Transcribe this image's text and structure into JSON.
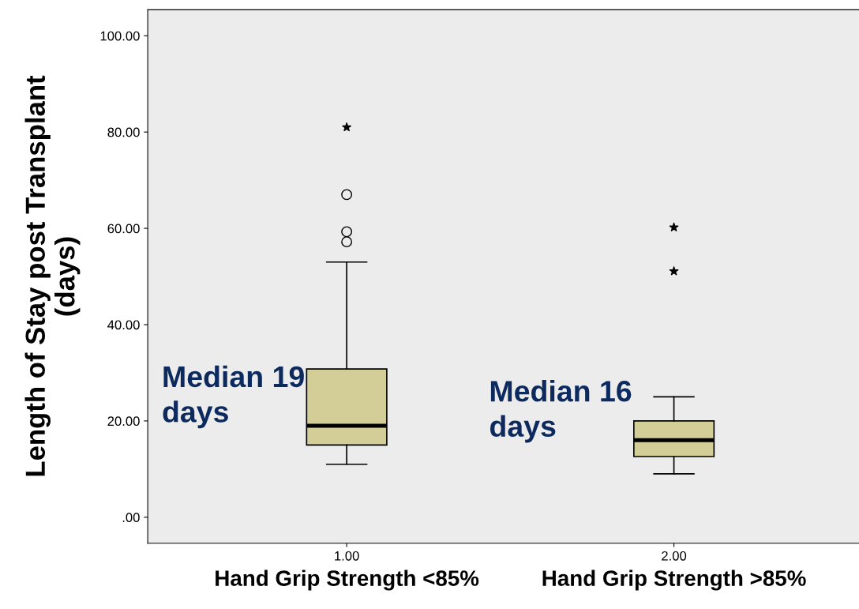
{
  "chart_data": {
    "type": "box",
    "ylabel": "Length of Stay post Transplant\n(days)",
    "categories": [
      "1.00",
      "2.00"
    ],
    "ylim": [
      -5.4,
      105.4
    ],
    "yticks": [
      {
        "value": 0,
        "label": ".00"
      },
      {
        "value": 20,
        "label": "20.00"
      },
      {
        "value": 40,
        "label": "40.00"
      },
      {
        "value": 60,
        "label": "60.00"
      },
      {
        "value": 80,
        "label": "80.00"
      },
      {
        "value": 100,
        "label": "100.00"
      }
    ],
    "grid": false,
    "legend": false,
    "series": [
      {
        "color": "#d3ce97",
        "boxes": [
          {
            "low": 11,
            "q1": 15,
            "median": 19,
            "q3": 30.8,
            "high": 53,
            "outliers": [
              67,
              59.3,
              57.2
            ]
          },
          {
            "low": 9,
            "q1": 12.6,
            "median": 16,
            "q3": 20,
            "high": 25
          }
        ]
      },
      {
        "type": "scatter",
        "marker": "star",
        "color": "#000000",
        "x": [
          "1.00",
          "2.00",
          "2.00"
        ],
        "values": [
          81,
          60.2,
          51.1
        ]
      }
    ],
    "annotations": [
      {
        "text": "Median 19\ndays",
        "x": "1.00",
        "y": 19
      },
      {
        "text": "Median 16\ndays",
        "x": "2.00",
        "y": 16
      },
      "Hand Grip Strength <85%",
      "Hand Grip Strength >85%"
    ]
  }
}
